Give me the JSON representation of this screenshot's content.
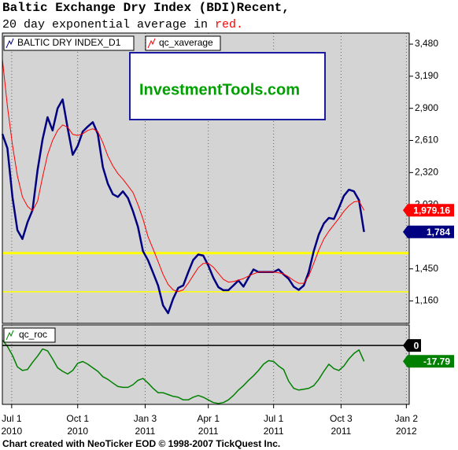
{
  "chart_data": [
    {
      "type": "line",
      "title": "Baltic Exchange Dry Index (BDI)Recent,",
      "subtitle": "20 day exponential average in",
      "subtitle_highlight": "red.",
      "watermark": "InvestmentTools.com",
      "x": [
        "2010-06-18",
        "2010-06-25",
        "2010-07-02",
        "2010-07-09",
        "2010-07-16",
        "2010-07-23",
        "2010-07-30",
        "2010-08-06",
        "2010-08-13",
        "2010-08-20",
        "2010-08-27",
        "2010-09-03",
        "2010-09-10",
        "2010-09-17",
        "2010-09-24",
        "2010-10-01",
        "2010-10-08",
        "2010-10-15",
        "2010-10-22",
        "2010-10-29",
        "2010-11-05",
        "2010-11-12",
        "2010-11-19",
        "2010-11-26",
        "2010-12-03",
        "2010-12-10",
        "2010-12-17",
        "2010-12-24",
        "2010-12-31",
        "2011-01-07",
        "2011-01-14",
        "2011-01-21",
        "2011-01-28",
        "2011-02-04",
        "2011-02-11",
        "2011-02-18",
        "2011-02-25",
        "2011-03-04",
        "2011-03-11",
        "2011-03-18",
        "2011-03-25",
        "2011-04-01",
        "2011-04-08",
        "2011-04-15",
        "2011-04-22",
        "2011-04-29",
        "2011-05-06",
        "2011-05-13",
        "2011-05-20",
        "2011-05-27",
        "2011-06-03",
        "2011-06-10",
        "2011-06-17",
        "2011-06-24",
        "2011-07-01",
        "2011-07-08",
        "2011-07-15",
        "2011-07-22",
        "2011-07-29",
        "2011-08-05",
        "2011-08-12",
        "2011-08-19",
        "2011-08-26",
        "2011-09-02",
        "2011-09-09",
        "2011-09-16",
        "2011-09-23",
        "2011-09-30",
        "2011-10-07",
        "2011-10-14",
        "2011-10-21",
        "2011-10-28",
        "2011-11-04"
      ],
      "series": [
        {
          "name": "BALTIC DRY INDEX_D1",
          "color": "#000080",
          "last_label": "1,784",
          "values": [
            2668,
            2540,
            2100,
            1800,
            1720,
            1870,
            1980,
            2340,
            2620,
            2820,
            2700,
            2900,
            2980,
            2720,
            2480,
            2560,
            2690,
            2735,
            2775,
            2668,
            2370,
            2220,
            2125,
            2100,
            2150,
            2090,
            1970,
            1830,
            1610,
            1528,
            1415,
            1300,
            1120,
            1050,
            1180,
            1278,
            1300,
            1420,
            1530,
            1580,
            1570,
            1480,
            1370,
            1285,
            1257,
            1257,
            1300,
            1345,
            1290,
            1370,
            1445,
            1421,
            1421,
            1421,
            1421,
            1445,
            1400,
            1360,
            1290,
            1260,
            1300,
            1421,
            1610,
            1760,
            1860,
            1910,
            1900,
            2000,
            2110,
            2165,
            2150,
            2070,
            1784
          ]
        },
        {
          "name": "qc_xaverage",
          "color": "#ff0000",
          "last_label": "1,979.16",
          "values": [
            3345,
            2920,
            2570,
            2290,
            2100,
            2015,
            1975,
            2060,
            2280,
            2480,
            2610,
            2700,
            2750,
            2730,
            2665,
            2655,
            2670,
            2700,
            2715,
            2690,
            2590,
            2470,
            2380,
            2310,
            2260,
            2200,
            2140,
            2030,
            1900,
            1740,
            1630,
            1515,
            1400,
            1310,
            1260,
            1245,
            1260,
            1320,
            1390,
            1460,
            1500,
            1500,
            1465,
            1410,
            1355,
            1330,
            1335,
            1348,
            1362,
            1385,
            1405,
            1421,
            1421,
            1421,
            1421,
            1415,
            1405,
            1378,
            1345,
            1320,
            1320,
            1385,
            1500,
            1620,
            1720,
            1790,
            1848,
            1905,
            1970,
            2020,
            2055,
            2062,
            1979.16
          ]
        }
      ],
      "xlim": [
        "2010-06-18",
        "2012-01-06"
      ],
      "xticks": [
        {
          "value": "2010-07-01",
          "label": "Jul 1",
          "year": "2010"
        },
        {
          "value": "2010-10-01",
          "label": "Oct 1",
          "year": "2010"
        },
        {
          "value": "2011-01-03",
          "label": "Jan 3",
          "year": "2011"
        },
        {
          "value": "2011-04-01",
          "label": "Apr 1",
          "year": "2011"
        },
        {
          "value": "2011-07-01",
          "label": "Jul 1",
          "year": "2011"
        },
        {
          "value": "2011-10-03",
          "label": "Oct 3",
          "year": "2011"
        },
        {
          "value": "2012-01-02",
          "label": "Jan 2",
          "year": "2012"
        }
      ],
      "ylim": [
        958,
        3580
      ],
      "yticks": [
        {
          "value": 1160,
          "label": "1,160"
        },
        {
          "value": 1450,
          "label": "1,450"
        },
        {
          "value": 2030,
          "label": "2,030"
        },
        {
          "value": 2320,
          "label": "2,320"
        },
        {
          "value": 2610,
          "label": "2,610"
        },
        {
          "value": 2900,
          "label": "2,900"
        },
        {
          "value": 3190,
          "label": "3,190"
        },
        {
          "value": 3480,
          "label": "3,480"
        }
      ],
      "reference_lines": [
        {
          "value": 1592,
          "color": "#ffff00",
          "width": 3
        },
        {
          "value": 1243,
          "color": "#ffff00",
          "width": 1.5
        }
      ],
      "grid": "x"
    },
    {
      "type": "line",
      "series": [
        {
          "name": "qc_roc",
          "color": "#008000",
          "last_label": "-17.79",
          "values": [
            6,
            -1,
            -11,
            -24,
            -28,
            -27,
            -19,
            -12,
            -4,
            -6,
            -15,
            -25,
            -29,
            -32,
            -28,
            -20,
            -18,
            -21,
            -25,
            -29,
            -35,
            -38,
            -42,
            -46,
            -47,
            -47,
            -44,
            -39,
            -37,
            -42,
            -48,
            -53,
            -53,
            -55,
            -57,
            -58,
            -61,
            -61,
            -58,
            -56,
            -58,
            -61,
            -64,
            -65,
            -64,
            -61,
            -56,
            -50,
            -45,
            -39,
            -34,
            -28,
            -21,
            -17,
            -18,
            -23,
            -27,
            -40,
            -48,
            -50,
            -49,
            -48,
            -45,
            -38,
            -29,
            -21,
            -26,
            -28,
            -23,
            -15,
            -9,
            -5,
            -17.79
          ]
        }
      ],
      "ylim": [
        -66,
        23
      ],
      "yticks": [
        0
      ]
    }
  ],
  "footer": "Chart created with NeoTicker EOD © 1998-2007 TickQuest Inc."
}
